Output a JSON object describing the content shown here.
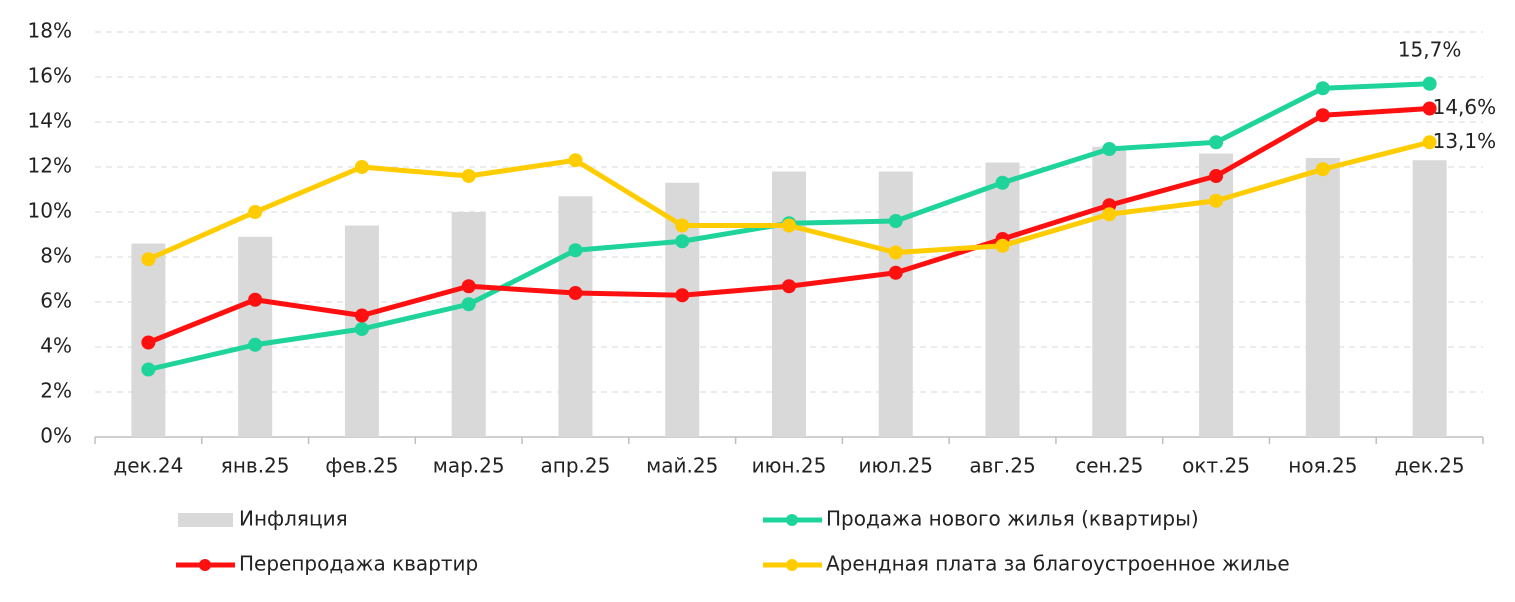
{
  "chart_data": {
    "type": "combo",
    "categories": [
      "дек.24",
      "янв.25",
      "фев.25",
      "мар.25",
      "апр.25",
      "май.25",
      "июн.25",
      "июл.25",
      "авг.25",
      "сен.25",
      "окт.25",
      "ноя.25",
      "дек.25"
    ],
    "series": [
      {
        "name": "Инфляция",
        "type": "bar",
        "color": "#d9d9d9",
        "values": [
          8.6,
          8.9,
          9.4,
          10.0,
          10.7,
          11.3,
          11.8,
          11.8,
          12.2,
          12.9,
          12.6,
          12.4,
          12.3
        ]
      },
      {
        "name": "Продажа нового жилья (квартиры)",
        "type": "line",
        "color": "#1fd49a",
        "values": [
          3.0,
          4.1,
          4.8,
          5.9,
          8.3,
          8.7,
          9.5,
          9.6,
          11.3,
          12.8,
          13.1,
          15.5,
          15.7
        ],
        "value_labels": [
          null,
          null,
          null,
          null,
          null,
          null,
          null,
          null,
          null,
          null,
          null,
          null,
          "15,7%"
        ]
      },
      {
        "name": "Перепродажа квартир",
        "type": "line",
        "color": "#ff1010",
        "values": [
          4.2,
          6.1,
          5.4,
          6.7,
          6.4,
          6.3,
          6.7,
          7.3,
          8.8,
          10.3,
          11.6,
          14.3,
          14.6
        ],
        "value_labels": [
          null,
          null,
          null,
          null,
          null,
          null,
          null,
          null,
          null,
          null,
          null,
          null,
          "14,6%"
        ]
      },
      {
        "name": "Арендная плата за благоустроенное жилье",
        "type": "line",
        "color": "#ffcc00",
        "values": [
          7.9,
          10.0,
          12.0,
          11.6,
          12.3,
          9.4,
          9.4,
          8.2,
          8.5,
          9.9,
          10.5,
          11.9,
          13.1
        ],
        "value_labels": [
          null,
          null,
          null,
          null,
          null,
          null,
          null,
          null,
          null,
          null,
          null,
          null,
          "13,1%"
        ]
      }
    ],
    "ylim": [
      0,
      18
    ],
    "yticks": [
      {
        "value": 0,
        "label": "0%"
      },
      {
        "value": 2,
        "label": "2%"
      },
      {
        "value": 4,
        "label": "4%"
      },
      {
        "value": 6,
        "label": "6%"
      },
      {
        "value": 8,
        "label": "8%"
      },
      {
        "value": 10,
        "label": "10%"
      },
      {
        "value": 12,
        "label": "12%"
      },
      {
        "value": 14,
        "label": "14%"
      },
      {
        "value": 16,
        "label": "16%"
      },
      {
        "value": 18,
        "label": "18%"
      }
    ],
    "grid": true
  }
}
